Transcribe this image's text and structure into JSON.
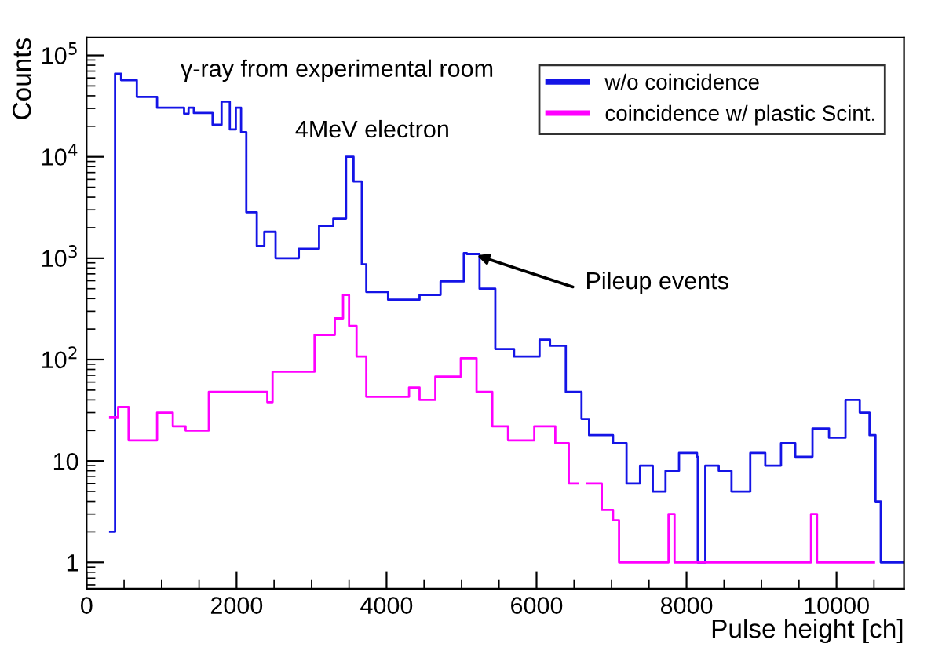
{
  "chart_data": {
    "type": "step",
    "xlabel": "Pulse height [ch]",
    "ylabel": "Counts",
    "log": "y",
    "xlim": [
      0,
      10900
    ],
    "xticks": [
      0,
      2000,
      4000,
      6000,
      8000,
      10000
    ],
    "ylim": [
      0.55,
      150000
    ],
    "yticks": [
      {
        "value": 1,
        "label": "1"
      },
      {
        "value": 10,
        "label": "10"
      },
      {
        "value": 100,
        "label": "10$^{2}$"
      },
      {
        "value": 1000,
        "label": "10$^{3}$"
      },
      {
        "value": 10000,
        "label": "10$^{4}$"
      },
      {
        "value": 100000,
        "label": "10$^{5}$"
      }
    ],
    "legend": "top right",
    "grid": false,
    "annotations": [
      "γ-ray from experimental room",
      "4MeV electron",
      {
        "text": "Pileup events",
        "x": 5150,
        "y": 1100
      }
    ],
    "series": [
      {
        "name": "w/o coincidence",
        "color": "#1414e6",
        "x": [
          314,
          380,
          460,
          670,
          940,
          1300,
          1360,
          1430,
          1680,
          1800,
          1910,
          1990,
          2060,
          2130,
          2270,
          2370,
          2520,
          2830,
          3100,
          3290,
          3460,
          3560,
          3670,
          3730,
          4020,
          4440,
          4720,
          5030,
          5070,
          5240,
          5450,
          5700,
          6040,
          6180,
          6390,
          6600,
          6700,
          7020,
          7200,
          7380,
          7550,
          7720,
          7900,
          8140,
          8150,
          8250,
          8430,
          8600,
          8850,
          9050,
          9260,
          9450,
          9680,
          9900,
          10120,
          10310,
          10440,
          10520,
          10590,
          10880
        ],
        "values": [
          2,
          66000,
          57000,
          39000,
          30500,
          26600,
          30500,
          27000,
          20700,
          35000,
          18600,
          30500,
          17500,
          2840,
          1320,
          1820,
          1000,
          1240,
          2090,
          2450,
          10000,
          5700,
          870,
          465,
          390,
          435,
          590,
          1120,
          1100,
          500,
          127,
          107,
          157,
          137,
          48,
          26,
          18,
          15,
          6,
          9,
          5,
          8,
          12,
          11,
          1,
          9,
          8,
          5,
          12,
          9,
          15,
          11,
          21,
          17,
          40,
          30,
          18,
          4,
          1,
          1
        ]
      },
      {
        "name": "coincidence w/ plastic Scint.",
        "color": "#ff00ff",
        "x": [
          314,
          420,
          560,
          940,
          1150,
          1320,
          1630,
          1990,
          2410,
          2480,
          3040,
          3310,
          3420,
          3500,
          3600,
          3730,
          4300,
          4440,
          4650,
          4990,
          5200,
          5410,
          5620,
          5970,
          6250,
          6430,
          6500,
          6550,
          6670,
          6870,
          7020,
          7100,
          7760,
          7840,
          9660,
          9740,
          10500
        ],
        "values": [
          27,
          34,
          16,
          30,
          22,
          20,
          48,
          48,
          38,
          76,
          175,
          255,
          435,
          215,
          107,
          43,
          53,
          40,
          68,
          103,
          48,
          22,
          16,
          22,
          15,
          6,
          6,
          null,
          6,
          3.3,
          2.6,
          1,
          3,
          1,
          3,
          1,
          1
        ]
      }
    ]
  }
}
